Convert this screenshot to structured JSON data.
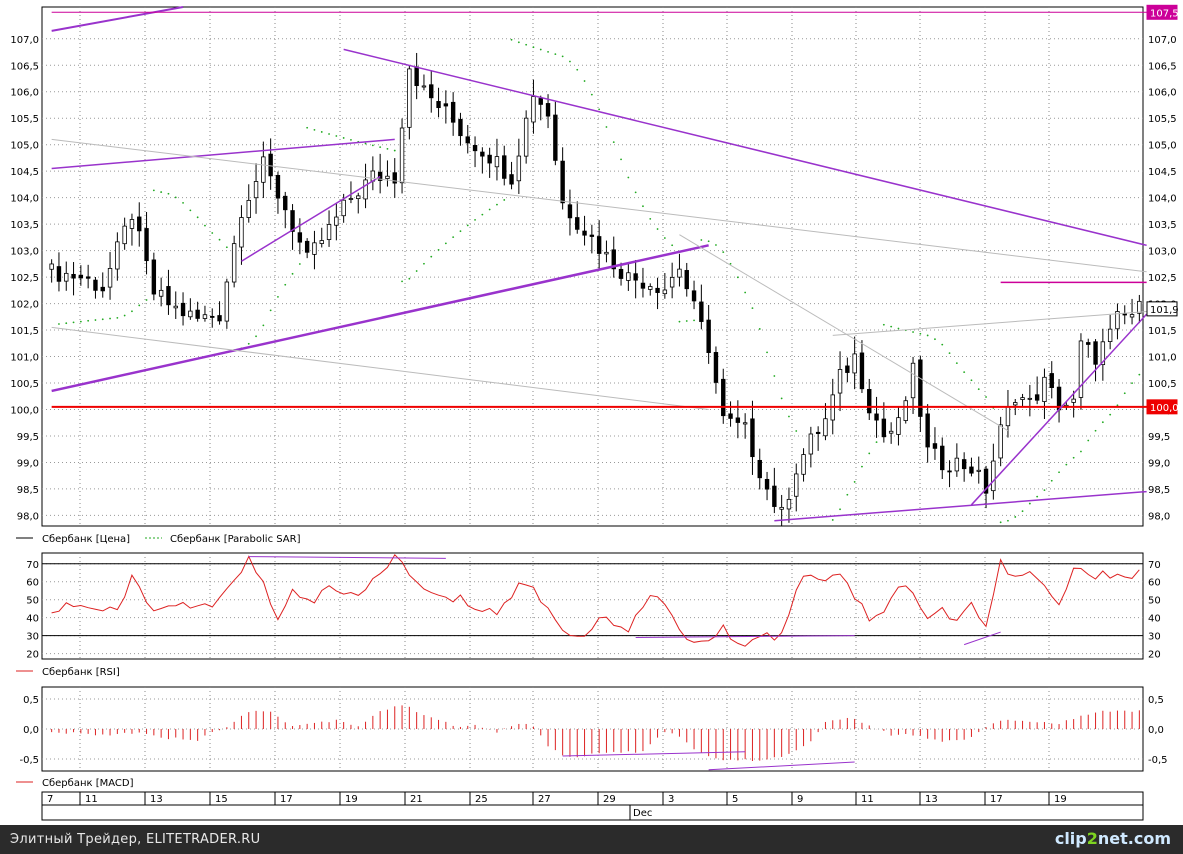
{
  "chart_data": [
    {
      "type": "line",
      "panel": "price",
      "ylim": [
        97.8,
        107.6
      ],
      "yticks": [
        98.0,
        98.5,
        99.0,
        99.5,
        100.0,
        100.5,
        101.0,
        101.5,
        102.0,
        102.5,
        103.0,
        103.5,
        104.0,
        104.5,
        105.0,
        105.5,
        106.0,
        106.5,
        107.0
      ],
      "ytick_labels": [
        "98,0",
        "98,5",
        "99,0",
        "99,5",
        "100,0",
        "100,5",
        "101,0",
        "101,5",
        "102,0",
        "102,5",
        "103,0",
        "103,5",
        "104,0",
        "104,5",
        "105,0",
        "105,5",
        "106,0",
        "106,5",
        "107,0"
      ],
      "legend": [
        "Сбербанк [Цена]",
        "Сбербанк [Parabolic SAR]"
      ],
      "price_markers": [
        {
          "label": "107,5",
          "value": 107.5,
          "color": "#cc0099"
        },
        {
          "label": "101,9",
          "value": 101.9,
          "color": "#ffffff"
        },
        {
          "label": "100,0",
          "value": 100.05,
          "color": "#ee0000"
        }
      ],
      "close_anchors": [
        [
          0,
          102.6
        ],
        [
          4,
          102.5
        ],
        [
          7,
          102.3
        ],
        [
          11,
          103.7
        ],
        [
          14,
          102.2
        ],
        [
          17,
          101.9
        ],
        [
          20,
          101.7
        ],
        [
          23,
          101.8
        ],
        [
          26,
          103.8
        ],
        [
          29,
          104.6
        ],
        [
          32,
          103.8
        ],
        [
          35,
          102.8
        ],
        [
          38,
          103.4
        ],
        [
          41,
          104.0
        ],
        [
          44,
          104.4
        ],
        [
          47,
          104.4
        ],
        [
          49,
          106.5
        ],
        [
          51,
          106.0
        ],
        [
          54,
          105.6
        ],
        [
          57,
          105.1
        ],
        [
          60,
          104.8
        ],
        [
          63,
          104.4
        ],
        [
          66,
          106.0
        ],
        [
          68,
          105.6
        ],
        [
          70,
          103.9
        ],
        [
          73,
          103.4
        ],
        [
          76,
          102.9
        ],
        [
          79,
          102.5
        ],
        [
          82,
          102.4
        ],
        [
          84,
          102.3
        ],
        [
          86,
          102.7
        ],
        [
          88,
          101.9
        ],
        [
          90,
          101.2
        ],
        [
          92,
          99.8
        ],
        [
          95,
          99.6
        ],
        [
          98,
          98.5
        ],
        [
          100,
          98.0
        ],
        [
          102,
          98.9
        ],
        [
          104,
          99.4
        ],
        [
          106,
          99.8
        ],
        [
          108,
          100.6
        ],
        [
          110,
          101.0
        ],
        [
          112,
          100.1
        ],
        [
          114,
          99.5
        ],
        [
          116,
          99.7
        ],
        [
          118,
          100.7
        ],
        [
          120,
          99.2
        ],
        [
          122,
          99.0
        ],
        [
          124,
          99.0
        ],
        [
          126,
          98.9
        ],
        [
          128,
          98.5
        ],
        [
          130,
          99.6
        ],
        [
          132,
          100.3
        ],
        [
          134,
          100.1
        ],
        [
          136,
          100.5
        ],
        [
          138,
          100.1
        ],
        [
          140,
          100.1
        ],
        [
          141,
          101.2
        ],
        [
          143,
          101.0
        ],
        [
          145,
          101.4
        ],
        [
          146,
          101.7
        ],
        [
          148,
          101.8
        ],
        [
          149,
          101.9
        ]
      ],
      "lines": [
        {
          "color": "#9933cc",
          "width": 2,
          "points": [
            [
              0,
              107.15
            ],
            [
              18,
              107.6
            ]
          ]
        },
        {
          "color": "#9933cc",
          "width": 1.5,
          "points": [
            [
              0,
              104.55
            ],
            [
              47,
              105.1
            ]
          ]
        },
        {
          "color": "#9933cc",
          "width": 1.5,
          "points": [
            [
              26,
              102.8
            ],
            [
              45,
              104.4
            ]
          ]
        },
        {
          "color": "#9933cc",
          "width": 1.5,
          "points": [
            [
              40,
              106.8
            ],
            [
              150,
              103.1
            ]
          ]
        },
        {
          "color": "#9933cc",
          "width": 2.5,
          "points": [
            [
              0,
              100.35
            ],
            [
              90,
              103.1
            ]
          ]
        },
        {
          "color": "#bbbbbb",
          "width": 1,
          "points": [
            [
              0,
              105.1
            ],
            [
              150,
              102.6
            ]
          ]
        },
        {
          "color": "#bbbbbb",
          "width": 1,
          "points": [
            [
              0,
              101.55
            ],
            [
              90,
              100.0
            ]
          ]
        },
        {
          "color": "#bbbbbb",
          "width": 1,
          "points": [
            [
              86,
              103.3
            ],
            [
              131,
              99.6
            ]
          ]
        },
        {
          "color": "#bbbbbb",
          "width": 1,
          "points": [
            [
              107,
              101.4
            ],
            [
              150,
              101.85
            ]
          ]
        },
        {
          "color": "#ee0000",
          "width": 2,
          "points": [
            [
              0,
              100.05
            ],
            [
              150,
              100.05
            ]
          ]
        },
        {
          "color": "#cc0099",
          "width": 1,
          "points": [
            [
              0,
              107.5
            ],
            [
              150,
              107.5
            ]
          ]
        },
        {
          "color": "#cc0099",
          "width": 1.5,
          "points": [
            [
              130,
              102.4
            ],
            [
              150,
              102.4
            ]
          ]
        },
        {
          "color": "#9933cc",
          "width": 1.5,
          "points": [
            [
              99,
              97.9
            ],
            [
              150,
              98.45
            ]
          ]
        },
        {
          "color": "#9933cc",
          "width": 1.5,
          "points": [
            [
              126,
              98.2
            ],
            [
              150,
              101.8
            ]
          ]
        }
      ]
    },
    {
      "type": "line",
      "panel": "rsi",
      "ylim": [
        17,
        76
      ],
      "yticks": [
        20,
        30,
        40,
        50,
        60,
        70
      ],
      "ytick_labels": [
        "20",
        "30",
        "40",
        "50",
        "60",
        "70"
      ],
      "hlines": [
        30,
        70
      ],
      "legend": [
        "Сбербанк [RSI]"
      ],
      "values_anchors": [
        [
          0,
          44
        ],
        [
          3,
          48
        ],
        [
          6,
          45
        ],
        [
          9,
          42
        ],
        [
          11,
          63
        ],
        [
          13,
          48
        ],
        [
          16,
          44
        ],
        [
          19,
          47
        ],
        [
          22,
          44
        ],
        [
          25,
          63
        ],
        [
          27,
          72
        ],
        [
          29,
          58
        ],
        [
          31,
          37
        ],
        [
          33,
          55
        ],
        [
          36,
          50
        ],
        [
          38,
          56
        ],
        [
          41,
          51
        ],
        [
          43,
          55
        ],
        [
          45,
          66
        ],
        [
          47,
          74
        ],
        [
          49,
          64
        ],
        [
          51,
          55
        ],
        [
          53,
          51
        ],
        [
          56,
          50
        ],
        [
          59,
          45
        ],
        [
          61,
          43
        ],
        [
          64,
          57
        ],
        [
          66,
          58
        ],
        [
          68,
          44
        ],
        [
          70,
          33
        ],
        [
          73,
          31
        ],
        [
          76,
          40
        ],
        [
          79,
          35
        ],
        [
          82,
          50
        ],
        [
          84,
          48
        ],
        [
          86,
          35
        ],
        [
          88,
          25
        ],
        [
          90,
          28
        ],
        [
          92,
          33
        ],
        [
          95,
          25
        ],
        [
          98,
          32
        ],
        [
          100,
          29
        ],
        [
          102,
          58
        ],
        [
          104,
          65
        ],
        [
          106,
          62
        ],
        [
          108,
          66
        ],
        [
          110,
          52
        ],
        [
          112,
          40
        ],
        [
          114,
          45
        ],
        [
          116,
          58
        ],
        [
          118,
          55
        ],
        [
          120,
          38
        ],
        [
          122,
          44
        ],
        [
          124,
          40
        ],
        [
          126,
          48
        ],
        [
          128,
          35
        ],
        [
          130,
          70
        ],
        [
          132,
          62
        ],
        [
          134,
          64
        ],
        [
          136,
          58
        ],
        [
          138,
          45
        ],
        [
          140,
          68
        ],
        [
          142,
          62
        ],
        [
          144,
          66
        ],
        [
          146,
          64
        ],
        [
          148,
          62
        ],
        [
          149,
          65
        ]
      ],
      "lines": [
        {
          "color": "#9933cc",
          "width": 1,
          "points": [
            [
              27,
              74
            ],
            [
              54,
              73
            ]
          ]
        },
        {
          "color": "#9933cc",
          "width": 1,
          "points": [
            [
              80,
              29
            ],
            [
              110,
              30
            ]
          ]
        },
        {
          "color": "#9933cc",
          "width": 1,
          "points": [
            [
              125,
              25
            ],
            [
              130,
              32
            ]
          ]
        }
      ]
    },
    {
      "type": "bar",
      "panel": "macd",
      "ylim": [
        -0.7,
        0.7
      ],
      "yticks": [
        -0.5,
        0.0,
        0.5
      ],
      "ytick_labels": [
        "-0,5",
        "0,0",
        "0,5"
      ],
      "legend": [
        "Сбербанк [MACD]"
      ],
      "values_anchors": [
        [
          0,
          -0.05
        ],
        [
          4,
          -0.08
        ],
        [
          8,
          -0.1
        ],
        [
          12,
          -0.05
        ],
        [
          16,
          -0.15
        ],
        [
          20,
          -0.18
        ],
        [
          24,
          0.05
        ],
        [
          27,
          0.3
        ],
        [
          30,
          0.28
        ],
        [
          33,
          0.05
        ],
        [
          36,
          0.1
        ],
        [
          39,
          0.15
        ],
        [
          42,
          0.05
        ],
        [
          45,
          0.3
        ],
        [
          48,
          0.4
        ],
        [
          52,
          0.2
        ],
        [
          55,
          0.05
        ],
        [
          58,
          0.05
        ],
        [
          61,
          -0.05
        ],
        [
          64,
          0.1
        ],
        [
          66,
          0.05
        ],
        [
          68,
          -0.3
        ],
        [
          71,
          -0.48
        ],
        [
          74,
          -0.42
        ],
        [
          78,
          -0.38
        ],
        [
          81,
          -0.38
        ],
        [
          84,
          -0.05
        ],
        [
          86,
          -0.12
        ],
        [
          88,
          -0.35
        ],
        [
          92,
          -0.52
        ],
        [
          96,
          -0.52
        ],
        [
          100,
          -0.48
        ],
        [
          104,
          -0.2
        ],
        [
          106,
          0.1
        ],
        [
          109,
          0.2
        ],
        [
          112,
          0.05
        ],
        [
          115,
          -0.1
        ],
        [
          118,
          -0.1
        ],
        [
          122,
          -0.2
        ],
        [
          126,
          -0.15
        ],
        [
          128,
          0.05
        ],
        [
          130,
          0.15
        ],
        [
          134,
          0.12
        ],
        [
          138,
          0.1
        ],
        [
          142,
          0.25
        ],
        [
          146,
          0.32
        ],
        [
          149,
          0.3
        ]
      ],
      "lines": [
        {
          "color": "#9933cc",
          "width": 1,
          "points": [
            [
              70,
              -0.45
            ],
            [
              95,
              -0.38
            ]
          ]
        },
        {
          "color": "#9933cc",
          "width": 1,
          "points": [
            [
              90,
              -0.68
            ],
            [
              110,
              -0.55
            ]
          ]
        }
      ]
    }
  ],
  "x_axis": {
    "categories": [
      "7",
      "11",
      "13",
      "15",
      "17",
      "19",
      "21",
      "25",
      "27",
      "29",
      "3",
      "5",
      "9",
      "11",
      "13",
      "17",
      "19"
    ],
    "month_label": "Dec"
  },
  "footer": {
    "text": "Элитный Трейдер, ELITETRADER.RU",
    "brand_main": "clip",
    "brand_num": "2",
    "brand_tail": "net.com"
  }
}
